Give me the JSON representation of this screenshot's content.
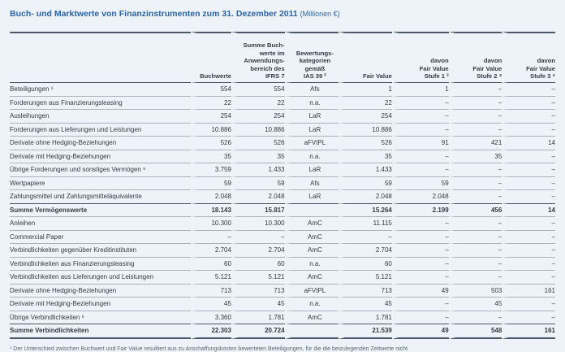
{
  "title": "Buch- und Marktwerte von Finanzinstrumenten zum 31. Dezember 2011",
  "unit": "(Millionen €)",
  "headers": [
    "",
    "Buchwerte",
    "Summe Buch-\nwerte im\nAnwendungs-\nbereich des\nIFRS 7",
    "Bewertungs-\nkategorien\ngemäß\nIAS 39 ²",
    "Fair Value",
    "davon\nFair Value\nStufe 1 ³",
    "davon\nFair Value\nStufe 2 ⁴",
    "davon\nFair Value\nStufe 3 ⁵"
  ],
  "rows": [
    {
      "cells": [
        "Beteiligungen ¹",
        "554",
        "554",
        "Afs",
        "1",
        "1",
        "–",
        "–"
      ]
    },
    {
      "cells": [
        "Forderungen aus Finanzierungsleasing",
        "22",
        "22",
        "n.a.",
        "22",
        "–",
        "–",
        "–"
      ]
    },
    {
      "cells": [
        "Ausleihungen",
        "254",
        "254",
        "LaR",
        "254",
        "–",
        "–",
        "–"
      ]
    },
    {
      "cells": [
        "Forderungen aus Lieferungen und Leistungen",
        "10.886",
        "10.886",
        "LaR",
        "10.886",
        "–",
        "–",
        "–"
      ]
    },
    {
      "cells": [
        "Derivate ohne Hedging-Beziehungen",
        "526",
        "526",
        "aFVtPL",
        "526",
        "91",
        "421",
        "14"
      ]
    },
    {
      "cells": [
        "Derivate mit Hedging-Beziehungen",
        "35",
        "35",
        "n.a.",
        "35",
        "–",
        "35",
        "–"
      ]
    },
    {
      "cells": [
        "Übrige Forderungen und sonstiges Vermögen ⁶",
        "3.759",
        "1.433",
        "LaR",
        "1.433",
        "–",
        "–",
        "–"
      ]
    },
    {
      "cells": [
        "Wertpapiere",
        "59",
        "59",
        "Afs",
        "59",
        "59",
        "–",
        "–"
      ]
    },
    {
      "cells": [
        "Zahlungsmittel und Zahlungsmitteläquivalente",
        "2.048",
        "2.048",
        "LaR",
        "2.048",
        "2.048",
        "–",
        "–"
      ]
    },
    {
      "bold": true,
      "cells": [
        "Summe Vermögenswerte",
        "18.143",
        "15.817",
        "",
        "15.264",
        "2.199",
        "456",
        "14"
      ]
    },
    {
      "cells": [
        "Anleihen",
        "10.300",
        "10.300",
        "AmC",
        "11.115",
        "–",
        "–",
        "–"
      ]
    },
    {
      "cells": [
        "Commercial Paper",
        "–",
        "–",
        "AmC",
        "–",
        "–",
        "–",
        "–"
      ]
    },
    {
      "cells": [
        "Verbindlichkeiten gegenüber Kreditinstituten",
        "2.704",
        "2.704",
        "AmC",
        "2.704",
        "–",
        "–",
        "–"
      ]
    },
    {
      "cells": [
        "Verbindlichkeiten aus Finanzierungsleasing",
        "60",
        "60",
        "n.a.",
        "60",
        "–",
        "–",
        "–"
      ]
    },
    {
      "cells": [
        "Verbindlichkeiten aus Lieferungen und Leistungen",
        "5.121",
        "5.121",
        "AmC",
        "5.121",
        "–",
        "–",
        "–"
      ]
    },
    {
      "cells": [
        "Derivate ohne Hedging-Beziehungen",
        "713",
        "713",
        "aFVtPL",
        "713",
        "49",
        "503",
        "161"
      ]
    },
    {
      "cells": [
        "Derivate mit Hedging-Beziehungen",
        "45",
        "45",
        "n.a.",
        "45",
        "–",
        "45",
        "–"
      ]
    },
    {
      "cells": [
        "Übrige Verbindlichkeiten ⁶",
        "3.360",
        "1.781",
        "AmC",
        "1.781",
        "–",
        "–",
        "–"
      ]
    },
    {
      "bold": true,
      "cells": [
        "Summe Verbindlichkeiten",
        "22.303",
        "20.724",
        "",
        "21.539",
        "49",
        "548",
        "161"
      ]
    }
  ],
  "footnote": "¹ Der Unterschied zwischen Buchwert und Fair Value resultiert aus zu Anschaffungskosten bewerteten Beteiligungen, für die die beizulegenden Zeitwerte nicht"
}
